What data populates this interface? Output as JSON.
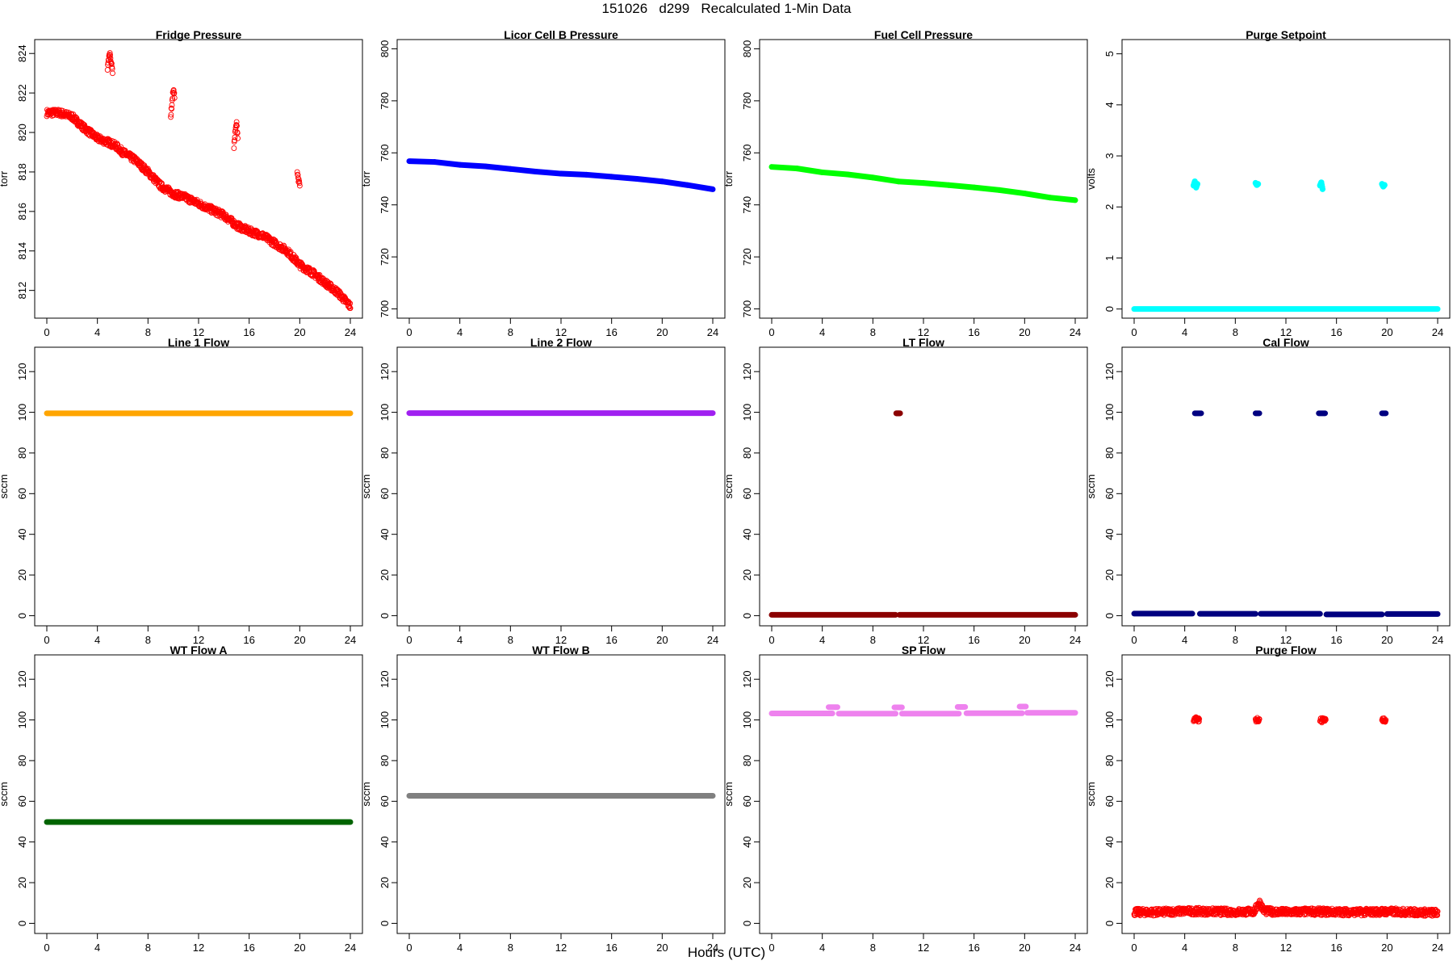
{
  "figure": {
    "title": "151026   d299   Recalculated 1-Min Data",
    "xlabel": "Hours (UTC)"
  },
  "chart_data": [
    {
      "type": "scatter",
      "title": "Fridge Pressure",
      "ylabel": "torr",
      "color": "#ff0000",
      "marker": "open-circle",
      "xlim": [
        0,
        24
      ],
      "ylim": [
        810.8,
        824.5
      ],
      "xticks": [
        0,
        4,
        8,
        12,
        16,
        20,
        24
      ],
      "yticks": [
        812,
        814,
        816,
        818,
        820,
        822,
        824
      ],
      "series": [
        {
          "x": [
            0,
            1,
            2,
            3,
            4,
            4.9,
            5.5,
            6,
            7,
            8,
            9,
            10,
            11,
            12,
            13,
            14,
            15,
            16,
            17,
            18,
            19,
            20,
            21,
            22,
            23,
            24
          ],
          "y": [
            821.0,
            821.0,
            820.8,
            820.2,
            819.7,
            819.5,
            819.3,
            819.0,
            818.6,
            818.0,
            817.3,
            816.9,
            816.7,
            816.4,
            816.1,
            815.8,
            815.3,
            815.0,
            814.8,
            814.4,
            814.0,
            813.3,
            812.9,
            812.4,
            811.9,
            811.2
          ]
        },
        {
          "x": [
            4.8,
            4.9,
            5.0,
            5.1,
            5.2
          ],
          "y": [
            823.2,
            823.8,
            824.0,
            823.5,
            823.1
          ]
        },
        {
          "x": [
            9.8,
            9.9,
            10.0,
            10.1
          ],
          "y": [
            820.8,
            821.5,
            822.2,
            821.8
          ]
        },
        {
          "x": [
            14.8,
            14.9,
            15.0,
            15.1
          ],
          "y": [
            819.3,
            820.0,
            820.5,
            819.8
          ]
        },
        {
          "x": [
            19.8,
            19.9,
            20.0
          ],
          "y": [
            818.0,
            817.6,
            817.3
          ]
        }
      ]
    },
    {
      "type": "scatter",
      "title": "Licor Cell B Pressure",
      "ylabel": "torr",
      "color": "#0000ff",
      "marker": "dense-line",
      "xlim": [
        0,
        24
      ],
      "ylim": [
        698,
        802
      ],
      "xticks": [
        0,
        4,
        8,
        12,
        16,
        20,
        24
      ],
      "yticks": [
        700,
        720,
        740,
        760,
        780,
        800
      ],
      "series": [
        {
          "x": [
            0,
            2,
            4,
            6,
            8,
            10,
            12,
            14,
            16,
            18,
            20,
            22,
            24
          ],
          "y": [
            756.8,
            756.5,
            755.4,
            754.8,
            753.8,
            752.8,
            752.0,
            751.6,
            750.8,
            750.0,
            749.0,
            747.6,
            746.0
          ]
        }
      ]
    },
    {
      "type": "scatter",
      "title": "Fuel Cell Pressure",
      "ylabel": "torr",
      "color": "#00ff00",
      "marker": "dense-line",
      "xlim": [
        0,
        24
      ],
      "ylim": [
        698,
        802
      ],
      "xticks": [
        0,
        4,
        8,
        12,
        16,
        20,
        24
      ],
      "yticks": [
        700,
        720,
        740,
        760,
        780,
        800
      ],
      "series": [
        {
          "x": [
            0,
            2,
            4,
            6,
            8,
            10,
            12,
            14,
            16,
            18,
            20,
            22,
            24
          ],
          "y": [
            754.6,
            754.0,
            752.5,
            751.7,
            750.5,
            749.0,
            748.4,
            747.6,
            746.7,
            745.7,
            744.4,
            742.8,
            741.8
          ]
        }
      ]
    },
    {
      "type": "scatter",
      "title": "Purge Setpoint",
      "ylabel": "volts",
      "color": "#00ffff",
      "marker": "filled-circle",
      "xlim": [
        0,
        24
      ],
      "ylim": [
        -0.1,
        5.2
      ],
      "xticks": [
        0,
        4,
        8,
        12,
        16,
        20,
        24
      ],
      "yticks": [
        0,
        1,
        2,
        3,
        4,
        5
      ],
      "series": [
        {
          "x": [
            0,
            24
          ],
          "y": [
            0,
            0
          ],
          "style": "band"
        },
        {
          "x": [
            4.7,
            4.8,
            4.9,
            5.0
          ],
          "y": [
            2.42,
            2.5,
            2.38,
            2.45
          ]
        },
        {
          "x": [
            9.6,
            9.7,
            9.8
          ],
          "y": [
            2.47,
            2.43,
            2.45
          ]
        },
        {
          "x": [
            14.7,
            14.8,
            14.9
          ],
          "y": [
            2.42,
            2.48,
            2.35
          ]
        },
        {
          "x": [
            19.6,
            19.7,
            19.8
          ],
          "y": [
            2.45,
            2.4,
            2.43
          ]
        }
      ]
    },
    {
      "type": "scatter",
      "title": "Line 1 Flow",
      "ylabel": "sccm",
      "color": "#ffa500",
      "marker": "dense-line",
      "xlim": [
        0,
        24
      ],
      "ylim": [
        -3,
        130
      ],
      "xticks": [
        0,
        4,
        8,
        12,
        16,
        20,
        24
      ],
      "yticks": [
        0,
        20,
        40,
        60,
        80,
        100,
        120
      ],
      "series": [
        {
          "x": [
            0,
            24
          ],
          "y": [
            99.5,
            99.5
          ],
          "style": "band"
        }
      ]
    },
    {
      "type": "scatter",
      "title": "Line 2 Flow",
      "ylabel": "sccm",
      "color": "#a020f0",
      "marker": "dense-line",
      "xlim": [
        0,
        24
      ],
      "ylim": [
        -3,
        130
      ],
      "xticks": [
        0,
        4,
        8,
        12,
        16,
        20,
        24
      ],
      "yticks": [
        0,
        20,
        40,
        60,
        80,
        100,
        120
      ],
      "series": [
        {
          "x": [
            0,
            24
          ],
          "y": [
            99.6,
            99.6
          ],
          "style": "band"
        }
      ]
    },
    {
      "type": "scatter",
      "title": "LT Flow",
      "ylabel": "sccm",
      "color": "#8b0000",
      "marker": "dense-line",
      "xlim": [
        0,
        24
      ],
      "ylim": [
        -3,
        130
      ],
      "xticks": [
        0,
        4,
        8,
        12,
        16,
        20,
        24
      ],
      "yticks": [
        0,
        20,
        40,
        60,
        80,
        100,
        120
      ],
      "series": [
        {
          "x": [
            0,
            9.8
          ],
          "y": [
            0.4,
            0.4
          ],
          "style": "band"
        },
        {
          "x": [
            10.1,
            24
          ],
          "y": [
            0.4,
            0.4
          ],
          "style": "band"
        },
        {
          "x": [
            9.85,
            10.0,
            10.15
          ],
          "y": [
            99.5,
            99.5,
            99.5
          ]
        }
      ]
    },
    {
      "type": "scatter",
      "title": "Cal Flow",
      "ylabel": "sccm",
      "color": "#000080",
      "marker": "dense-line",
      "xlim": [
        0,
        24
      ],
      "ylim": [
        -3,
        130
      ],
      "xticks": [
        0,
        4,
        8,
        12,
        16,
        20,
        24
      ],
      "yticks": [
        0,
        20,
        40,
        60,
        80,
        100,
        120
      ],
      "series": [
        {
          "x": [
            0,
            4.6
          ],
          "y": [
            1.0,
            1.0
          ],
          "style": "band"
        },
        {
          "x": [
            5.2,
            9.6
          ],
          "y": [
            0.9,
            0.9
          ],
          "style": "band"
        },
        {
          "x": [
            10.0,
            14.7
          ],
          "y": [
            0.9,
            0.9
          ],
          "style": "band"
        },
        {
          "x": [
            15.2,
            19.6
          ],
          "y": [
            0.6,
            0.6
          ],
          "style": "band"
        },
        {
          "x": [
            20.0,
            24
          ],
          "y": [
            0.8,
            0.8
          ],
          "style": "band"
        },
        {
          "x": [
            4.8,
            5.3
          ],
          "y": [
            99.5,
            99.5
          ],
          "style": "band"
        },
        {
          "x": [
            9.6,
            9.9
          ],
          "y": [
            99.5,
            99.5
          ],
          "style": "band"
        },
        {
          "x": [
            14.6,
            15.1
          ],
          "y": [
            99.5,
            99.5
          ],
          "style": "band"
        },
        {
          "x": [
            19.6,
            19.9
          ],
          "y": [
            99.5,
            99.5
          ],
          "style": "band"
        }
      ]
    },
    {
      "type": "scatter",
      "title": "WT Flow A",
      "ylabel": "sccm",
      "color": "#006400",
      "marker": "dense-line",
      "xlim": [
        0,
        24
      ],
      "ylim": [
        -3,
        130
      ],
      "xticks": [
        0,
        4,
        8,
        12,
        16,
        20,
        24
      ],
      "yticks": [
        0,
        20,
        40,
        60,
        80,
        100,
        120
      ],
      "series": [
        {
          "x": [
            0,
            24
          ],
          "y": [
            49.8,
            49.8
          ],
          "style": "band"
        }
      ]
    },
    {
      "type": "scatter",
      "title": "WT Flow B",
      "ylabel": "sccm",
      "color": "#808080",
      "marker": "dense-line",
      "xlim": [
        0,
        24
      ],
      "ylim": [
        -3,
        130
      ],
      "xticks": [
        0,
        4,
        8,
        12,
        16,
        20,
        24
      ],
      "yticks": [
        0,
        20,
        40,
        60,
        80,
        100,
        120
      ],
      "series": [
        {
          "x": [
            0,
            24
          ],
          "y": [
            62.7,
            62.7
          ],
          "style": "band"
        }
      ]
    },
    {
      "type": "scatter",
      "title": "SP Flow",
      "ylabel": "sccm",
      "color": "#ee82ee",
      "marker": "dense-line",
      "xlim": [
        0,
        24
      ],
      "ylim": [
        -3,
        130
      ],
      "xticks": [
        0,
        4,
        8,
        12,
        16,
        20,
        24
      ],
      "yticks": [
        0,
        20,
        40,
        60,
        80,
        100,
        120
      ],
      "series": [
        {
          "x": [
            0,
            4.8
          ],
          "y": [
            103.2,
            103.2
          ],
          "style": "band"
        },
        {
          "x": [
            5.3,
            9.8
          ],
          "y": [
            103.1,
            103.1
          ],
          "style": "band"
        },
        {
          "x": [
            10.3,
            14.8
          ],
          "y": [
            103.1,
            103.1
          ],
          "style": "band"
        },
        {
          "x": [
            15.4,
            19.8
          ],
          "y": [
            103.3,
            103.3
          ],
          "style": "band"
        },
        {
          "x": [
            20.2,
            24
          ],
          "y": [
            103.5,
            103.5
          ],
          "style": "band"
        },
        {
          "x": [
            4.5,
            5.2
          ],
          "y": [
            106.3,
            106.3
          ],
          "style": "band"
        },
        {
          "x": [
            9.7,
            10.3
          ],
          "y": [
            106.2,
            106.2
          ],
          "style": "band"
        },
        {
          "x": [
            14.7,
            15.3
          ],
          "y": [
            106.4,
            106.4
          ],
          "style": "band"
        },
        {
          "x": [
            19.6,
            20.1
          ],
          "y": [
            106.6,
            106.6
          ],
          "style": "band"
        }
      ]
    },
    {
      "type": "scatter",
      "title": "Purge Flow",
      "ylabel": "sccm",
      "color": "#ff0000",
      "marker": "open-circle",
      "xlim": [
        0,
        24
      ],
      "ylim": [
        -3,
        130
      ],
      "xticks": [
        0,
        4,
        8,
        12,
        16,
        20,
        24
      ],
      "yticks": [
        0,
        20,
        40,
        60,
        80,
        100,
        120
      ],
      "series": [
        {
          "x": [
            0,
            2,
            4,
            6,
            8,
            9.5,
            9.9,
            10.3,
            12,
            14,
            16,
            18,
            20,
            22,
            24
          ],
          "y": [
            5.5,
            5.5,
            6.0,
            5.8,
            5.6,
            5.8,
            10.5,
            6.0,
            5.5,
            5.8,
            5.6,
            5.5,
            5.8,
            5.5,
            5.2
          ]
        },
        {
          "x": [
            4.7,
            4.85,
            5.0,
            5.15
          ],
          "y": [
            100.2,
            100.6,
            99.8,
            100.0
          ]
        },
        {
          "x": [
            9.6,
            9.75,
            9.9
          ],
          "y": [
            99.8,
            100.4,
            100.0
          ]
        },
        {
          "x": [
            14.7,
            14.85,
            15.0,
            15.15
          ],
          "y": [
            100.2,
            99.7,
            100.5,
            100.0
          ]
        },
        {
          "x": [
            19.6,
            19.75,
            19.9
          ],
          "y": [
            99.8,
            100.3,
            100.0
          ]
        }
      ]
    }
  ]
}
